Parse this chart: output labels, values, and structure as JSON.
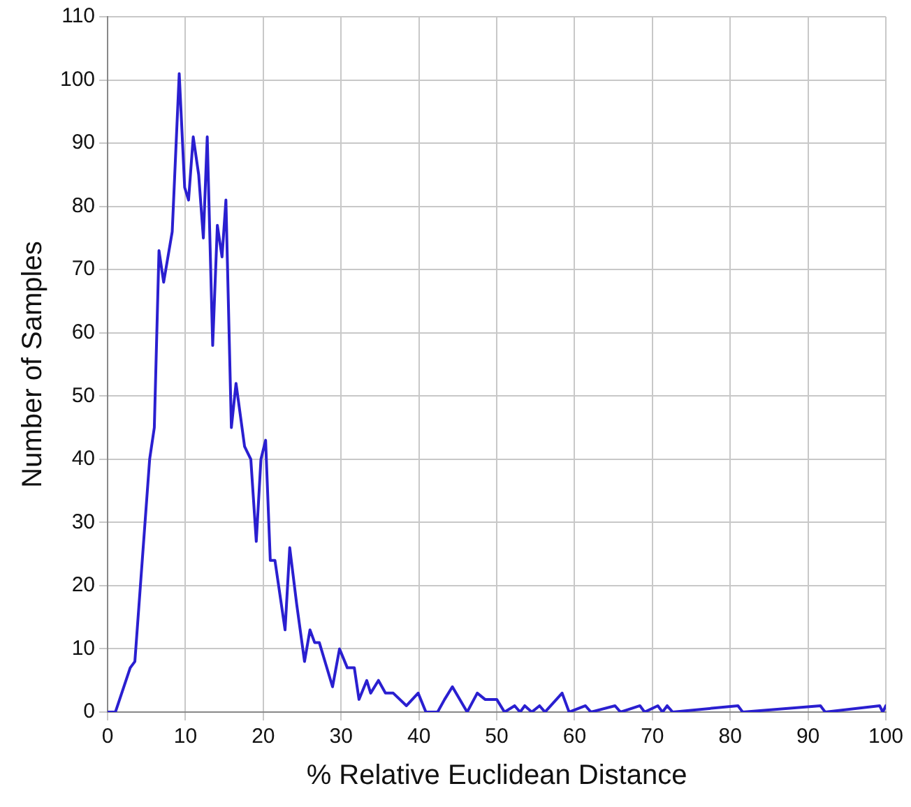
{
  "chart_data": {
    "type": "line",
    "xlabel": "% Relative Euclidean Distance",
    "ylabel": "Number of Samples",
    "xlim": [
      0,
      100
    ],
    "xticks": [
      0,
      10,
      20,
      30,
      40,
      50,
      60,
      70,
      80,
      90,
      100
    ],
    "ylim": [
      0,
      110
    ],
    "yticks": [
      0,
      10,
      20,
      30,
      40,
      50,
      60,
      70,
      80,
      90,
      100,
      110
    ],
    "grid": true,
    "legend": false,
    "marker": "none",
    "line_style": "solid",
    "series": [
      {
        "color": "#2a1fd0",
        "x": [
          0,
          1,
          2.9,
          3.5,
          5.4,
          6,
          6.6,
          7.2,
          8.3,
          9.2,
          9.9,
          10.4,
          11,
          11.7,
          12.3,
          12.8,
          13.5,
          14.1,
          14.7,
          15.2,
          15.9,
          16.5,
          17.6,
          18.4,
          19.1,
          19.7,
          20.3,
          20.9,
          21.5,
          22.8,
          23.4,
          24.3,
          25.3,
          26,
          26.6,
          27.2,
          28.9,
          29.8,
          30.8,
          31.7,
          32.3,
          33.3,
          33.8,
          34.8,
          35.7,
          36.7,
          38.4,
          39.9,
          40.9,
          42.4,
          43.3,
          44.3,
          46.2,
          47.5,
          48.5,
          49.4,
          50,
          51,
          52.3,
          53,
          53.6,
          54.5,
          55.5,
          56.2,
          58.4,
          59.3,
          61.4,
          62.1,
          65.2,
          65.9,
          68.4,
          69,
          70.7,
          71.3,
          71.9,
          72.6,
          81,
          81.6,
          91.6,
          92.2,
          99.2,
          99.6,
          100
        ],
        "values": [
          0,
          0,
          7,
          8,
          40,
          45,
          73,
          68,
          76,
          101,
          83,
          81,
          91,
          85,
          75,
          91,
          58,
          77,
          72,
          81,
          45,
          52,
          42,
          40,
          27,
          40,
          43,
          24,
          24,
          13,
          26,
          17,
          8,
          13,
          11,
          11,
          4,
          10,
          7,
          7,
          2,
          5,
          3,
          5,
          3,
          3,
          1,
          3,
          0,
          0,
          2,
          4,
          0,
          3,
          2,
          2,
          2,
          0,
          1,
          0,
          1,
          0,
          1,
          0,
          3,
          0,
          1,
          0,
          1,
          0,
          1,
          0,
          1,
          0,
          1,
          0,
          1,
          0,
          1,
          0,
          1,
          0,
          1
        ]
      }
    ]
  }
}
